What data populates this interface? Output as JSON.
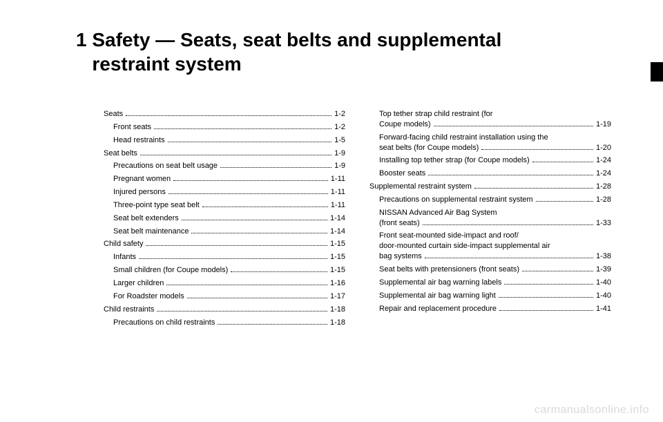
{
  "chapter": {
    "number": "1",
    "title_line1": "Safety — Seats, seat belts and supplemental",
    "title_line2": "restraint system"
  },
  "watermark": "carmanualsonline.info",
  "toc": {
    "left": [
      {
        "label": "Seats",
        "page": "1-2",
        "indent": false
      },
      {
        "label": "Front seats",
        "page": "1-2",
        "indent": true
      },
      {
        "label": "Head restraints",
        "page": "1-5",
        "indent": true
      },
      {
        "label": "Seat belts",
        "page": "1-9",
        "indent": false
      },
      {
        "label": "Precautions on seat belt usage",
        "page": "1-9",
        "indent": true
      },
      {
        "label": "Pregnant women",
        "page": "1-11",
        "indent": true
      },
      {
        "label": "Injured persons",
        "page": "1-11",
        "indent": true
      },
      {
        "label": "Three-point type seat belt",
        "page": "1-11",
        "indent": true
      },
      {
        "label": "Seat belt extenders",
        "page": "1-14",
        "indent": true
      },
      {
        "label": "Seat belt maintenance",
        "page": "1-14",
        "indent": true
      },
      {
        "label": "Child safety",
        "page": "1-15",
        "indent": false
      },
      {
        "label": "Infants",
        "page": "1-15",
        "indent": true
      },
      {
        "label": "Small children (for Coupe models)",
        "page": "1-15",
        "indent": true
      },
      {
        "label": "Larger children",
        "page": "1-16",
        "indent": true
      },
      {
        "label": "For Roadster models",
        "page": "1-17",
        "indent": true
      },
      {
        "label": "Child restraints",
        "page": "1-18",
        "indent": false
      },
      {
        "label": "Precautions on child restraints",
        "page": "1-18",
        "indent": true
      }
    ],
    "right": [
      {
        "pre": "Top tether strap child restraint (for",
        "last": "Coupe models)",
        "page": "1-19",
        "indent": true,
        "multi": true
      },
      {
        "pre": "Forward-facing child restraint installation using the",
        "last": "seat belts (for Coupe models)",
        "page": "1-20",
        "indent": true,
        "multi": true
      },
      {
        "label": "Installing top tether strap (for Coupe models)",
        "page": "1-24",
        "indent": true
      },
      {
        "label": "Booster seats",
        "page": "1-24",
        "indent": true
      },
      {
        "label": "Supplemental restraint system",
        "page": "1-28",
        "indent": false
      },
      {
        "label": "Precautions on supplemental restraint system",
        "page": "1-28",
        "indent": true
      },
      {
        "pre": "NISSAN Advanced Air Bag System",
        "last": "(front seats)",
        "page": "1-33",
        "indent": true,
        "multi": true
      },
      {
        "pre": "Front seat-mounted side-impact and roof/",
        "pre2": "door-mounted curtain side-impact supplemental air",
        "last": "bag systems",
        "page": "1-38",
        "indent": true,
        "multi": true
      },
      {
        "label": "Seat belts with pretensioners (front seats)",
        "page": "1-39",
        "indent": true
      },
      {
        "label": "Supplemental air bag warning labels",
        "page": "1-40",
        "indent": true
      },
      {
        "label": "Supplemental air bag warning light",
        "page": "1-40",
        "indent": true
      },
      {
        "label": "Repair and replacement procedure",
        "page": "1-41",
        "indent": true
      }
    ]
  }
}
